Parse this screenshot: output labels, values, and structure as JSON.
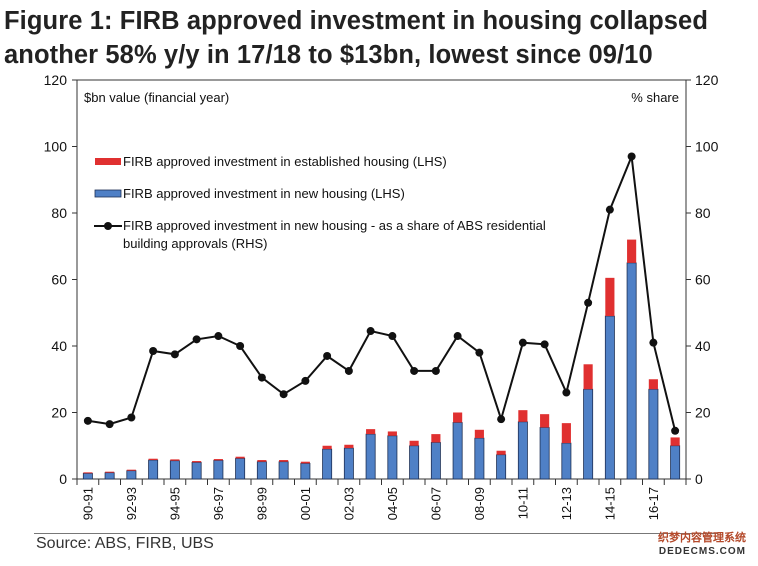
{
  "title_line1": "Figure 1: FIRB approved investment in housing collapsed",
  "title_line2": "another 58% y/y in 17/18 to $13bn, lowest since 09/10",
  "source": "Source:  ABS, FIRB, UBS",
  "watermark_line1": "织梦内容管理系统",
  "watermark_line2": "DEDECMS.COM",
  "chart_data": {
    "type": "bar",
    "left_axis_label": "$bn value (financial year)",
    "right_axis_label": "% share",
    "ylim": [
      0,
      120
    ],
    "y2lim": [
      0,
      120
    ],
    "yticks": [
      "0",
      "20",
      "40",
      "60",
      "80",
      "100",
      "120"
    ],
    "y2ticks": [
      "0",
      "20",
      "40",
      "60",
      "80",
      "100",
      "120"
    ],
    "grid": false,
    "legend_position": "top-left",
    "colors": {
      "established": "#e03030",
      "new": "#4f80c6",
      "share": "#111111"
    },
    "categories": [
      "90-91",
      "91-92",
      "92-93",
      "93-94",
      "94-95",
      "95-96",
      "96-97",
      "97-98",
      "98-99",
      "99-00",
      "00-01",
      "01-02",
      "02-03",
      "03-04",
      "04-05",
      "05-06",
      "06-07",
      "07-08",
      "08-09",
      "09-10",
      "10-11",
      "11-12",
      "12-13",
      "13-14",
      "14-15",
      "15-16",
      "16-17",
      "17-18"
    ],
    "xtick_labels": [
      "90-91",
      "",
      "92-93",
      "",
      "94-95",
      "",
      "96-97",
      "",
      "98-99",
      "",
      "00-01",
      "",
      "02-03",
      "",
      "04-05",
      "",
      "06-07",
      "",
      "08-09",
      "",
      "10-11",
      "",
      "12-13",
      "",
      "14-15",
      "",
      "16-17",
      ""
    ],
    "series": [
      {
        "name": "FIRB approved investment in established housing (LHS)",
        "kind": "bar-stacked",
        "values": [
          0.3,
          0.3,
          0.3,
          0.4,
          0.4,
          0.4,
          0.4,
          0.5,
          0.5,
          0.5,
          0.5,
          1.0,
          1.0,
          1.5,
          1.3,
          1.5,
          2.5,
          3.0,
          2.5,
          1.2,
          3.5,
          4.0,
          6.0,
          7.5,
          11.5,
          7.0,
          3.0,
          2.5
        ]
      },
      {
        "name": "FIRB approved investment in new housing (LHS)",
        "kind": "bar-base",
        "values": [
          1.7,
          1.9,
          2.5,
          5.7,
          5.5,
          5.0,
          5.6,
          6.2,
          5.2,
          5.2,
          4.7,
          9.0,
          9.3,
          13.5,
          13.0,
          10.0,
          11.0,
          17.0,
          12.3,
          7.3,
          17.2,
          15.5,
          10.8,
          27.0,
          49.0,
          65.0,
          27.0,
          10.0
        ]
      },
      {
        "name": "FIRB approved investment in new housing - as a share of ABS residential building approvals (RHS)",
        "kind": "line",
        "values": [
          17.5,
          16.5,
          18.5,
          38.5,
          37.5,
          42,
          43,
          40,
          30.5,
          25.5,
          29.5,
          37,
          32.5,
          44.5,
          43,
          32.5,
          32.5,
          43,
          38,
          18,
          41,
          40.5,
          26,
          53,
          81,
          97,
          41,
          14.5
        ]
      }
    ]
  }
}
